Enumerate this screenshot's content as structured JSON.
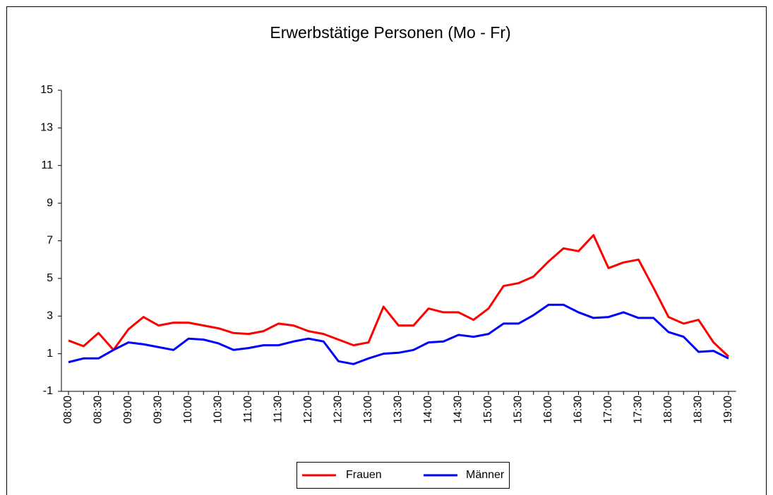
{
  "chart_data": {
    "type": "line",
    "title": "Erwerbstätige Personen (Mo - Fr)",
    "categories": [
      "08:00",
      null,
      "08:30",
      null,
      "09:00",
      null,
      "09:30",
      null,
      "10:00",
      null,
      "10:30",
      null,
      "11:00",
      null,
      "11:30",
      null,
      "12:00",
      null,
      "12:30",
      null,
      "13:00",
      null,
      "13:30",
      null,
      "14:00",
      null,
      "14:30",
      null,
      "15:00",
      null,
      "15:30",
      null,
      "16:00",
      null,
      "16:30",
      null,
      "17:00",
      null,
      "17:30",
      null,
      "18:00",
      null,
      "18:30",
      null,
      "19:00"
    ],
    "series": [
      {
        "name": "Frauen",
        "color": "#ff0000",
        "values": [
          1.7,
          1.4,
          2.1,
          1.2,
          2.3,
          2.95,
          2.5,
          2.65,
          2.65,
          2.5,
          2.35,
          2.1,
          2.05,
          2.2,
          2.6,
          2.5,
          2.2,
          2.05,
          1.75,
          1.45,
          1.6,
          3.5,
          2.5,
          2.5,
          3.4,
          3.2,
          3.2,
          2.8,
          3.4,
          4.6,
          4.75,
          5.1,
          5.9,
          6.6,
          6.45,
          7.3,
          5.55,
          5.85,
          6.0,
          4.5,
          2.95,
          2.6,
          2.8,
          1.6,
          0.85
        ]
      },
      {
        "name": "Männer",
        "color": "#0000ff",
        "values": [
          0.55,
          0.75,
          0.75,
          1.2,
          1.6,
          1.5,
          1.35,
          1.2,
          1.8,
          1.75,
          1.55,
          1.2,
          1.3,
          1.45,
          1.45,
          1.65,
          1.8,
          1.65,
          0.6,
          0.45,
          0.75,
          1.0,
          1.05,
          1.2,
          1.6,
          1.65,
          2.0,
          1.9,
          2.05,
          2.6,
          2.6,
          3.05,
          3.6,
          3.6,
          3.2,
          2.9,
          2.95,
          3.2,
          2.9,
          2.9,
          2.15,
          1.9,
          1.1,
          1.15,
          0.75
        ]
      }
    ],
    "ylim": [
      -1,
      15
    ],
    "yticks": [
      -1,
      1,
      3,
      5,
      7,
      9,
      11,
      13,
      15
    ],
    "legend": "bottom"
  }
}
